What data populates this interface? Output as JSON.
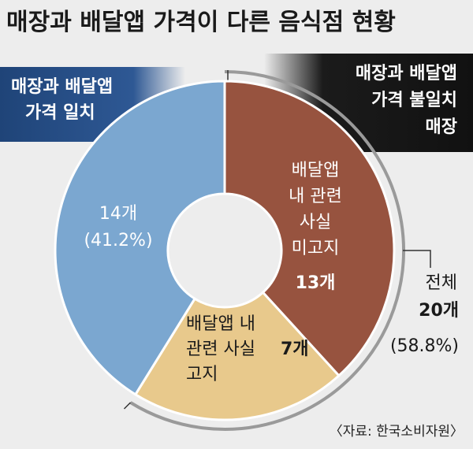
{
  "title": "매장과 배달앱 가격이 다른 음식점 현황",
  "source": "〈자료: 한국소비자원〉",
  "colors": {
    "same_price": "#7ba7d0",
    "not_disclosed": "#97533f",
    "disclosed": "#e8c98c",
    "banner_blue": "#2b4f86",
    "banner_black": "#161616",
    "bracket": "#9a9a9a"
  },
  "banners": {
    "same": [
      "매장과 배달앱",
      "가격 일치"
    ],
    "diff": [
      "매장과 배달앱",
      "가격 불일치",
      "매장"
    ]
  },
  "labels": {
    "same_count": "14개",
    "same_pct": "(41.2%)",
    "nd_text": [
      "배달앱",
      "내 관련",
      "사실",
      "미고지"
    ],
    "nd_count": "13개",
    "disc_text": [
      "배달앱 내",
      "관련 사실",
      "고지"
    ],
    "disc_count": "7개",
    "total_word": "전체",
    "total_count": "20개",
    "total_pct": "(58.8%)"
  },
  "chart_data": {
    "type": "pie",
    "variant": "donut",
    "title": "매장과 배달앱 가격이 다른 음식점 현황",
    "slices": [
      {
        "label": "배달앱 내 관련 사실 미고지",
        "value": 13,
        "group": "매장과 배달앱 가격 불일치 매장"
      },
      {
        "label": "배달앱 내 관련 사실 고지",
        "value": 7,
        "group": "매장과 배달앱 가격 불일치 매장"
      },
      {
        "label": "매장과 배달앱 가격 일치",
        "value": 14,
        "percent": 41.2
      }
    ],
    "groups": [
      {
        "label": "매장과 배달앱 가격 불일치 매장",
        "value": 20,
        "percent": 58.8
      },
      {
        "label": "매장과 배달앱 가격 일치",
        "value": 14,
        "percent": 41.2
      }
    ]
  }
}
